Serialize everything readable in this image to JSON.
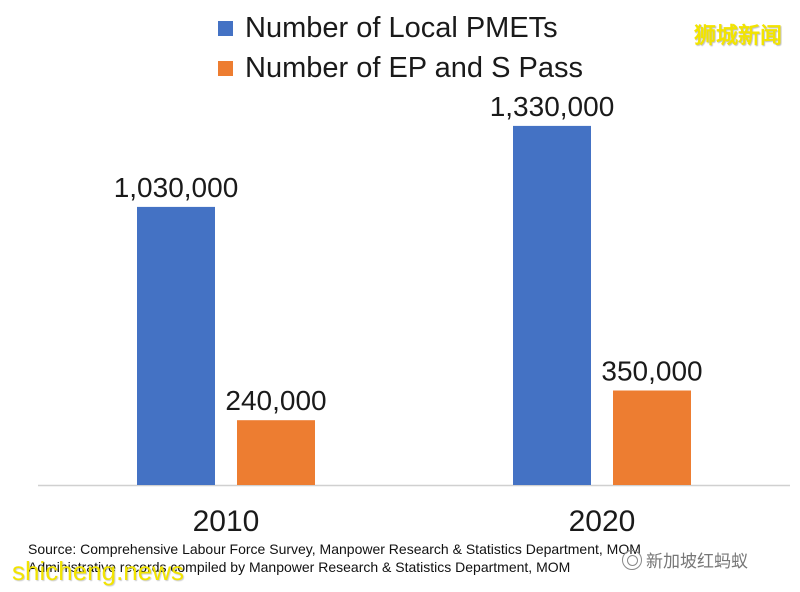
{
  "chart_data": {
    "type": "bar",
    "categories": [
      "2010",
      "2020"
    ],
    "series": [
      {
        "name": "Number of Local PMETs",
        "color": "#4472c4",
        "values": [
          1030000,
          1330000
        ],
        "labels": [
          "1,030,000",
          "1,330,000"
        ]
      },
      {
        "name": "Number of EP and S Pass",
        "color": "#ed7d31",
        "values": [
          240000,
          350000
        ],
        "labels": [
          "240,000",
          "350,000"
        ]
      }
    ],
    "ylim": [
      0,
      1500000
    ],
    "grid": false,
    "legend_position": "top"
  },
  "source_lines": [
    "Source: Comprehensive Labour Force Survey, Manpower Research & Statistics Department, MOM",
    "Administrative records compiled by Manpower Research & Statistics Department, MOM"
  ],
  "watermarks": {
    "top_right": "狮城新闻",
    "bottom_left": "shicheng.news",
    "bottom_right": "新加坡红蚂蚁"
  }
}
